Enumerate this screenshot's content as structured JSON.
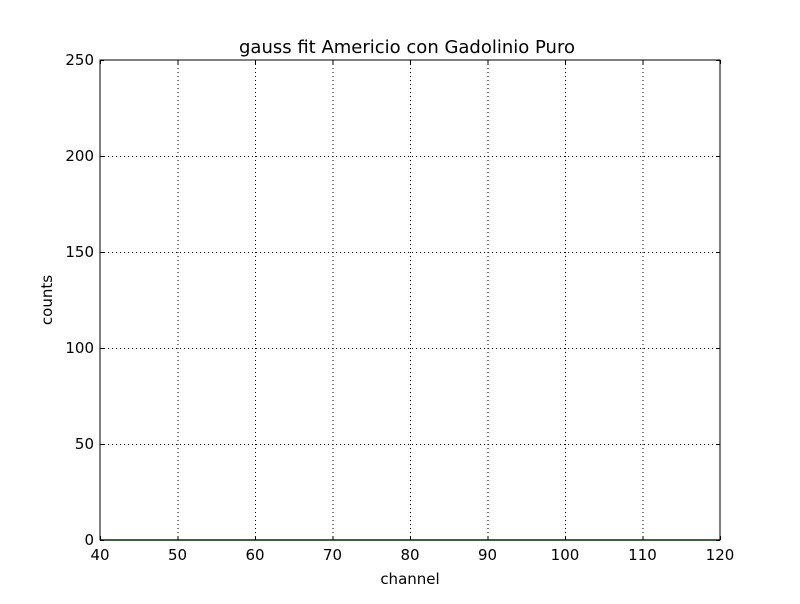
{
  "chart_data": {
    "type": "line",
    "title": "gauss fit Americio con Gadolinio Puro",
    "xlabel": "channel",
    "ylabel": "counts",
    "xlim": [
      40,
      120
    ],
    "ylim": [
      0,
      250
    ],
    "x_ticks": [
      40,
      50,
      60,
      70,
      80,
      90,
      100,
      110,
      120
    ],
    "y_ticks": [
      0,
      50,
      100,
      150,
      200,
      250
    ],
    "x_tick_labels": [
      "40",
      "50",
      "60",
      "70",
      "80",
      "90",
      "100",
      "110",
      "120"
    ],
    "y_tick_labels": [
      "0",
      "50",
      "100",
      "150",
      "200",
      "250"
    ],
    "grid": true,
    "series": [
      {
        "color": "#007f00",
        "x": [
          40,
          120
        ],
        "y": [
          0,
          0
        ]
      }
    ]
  }
}
